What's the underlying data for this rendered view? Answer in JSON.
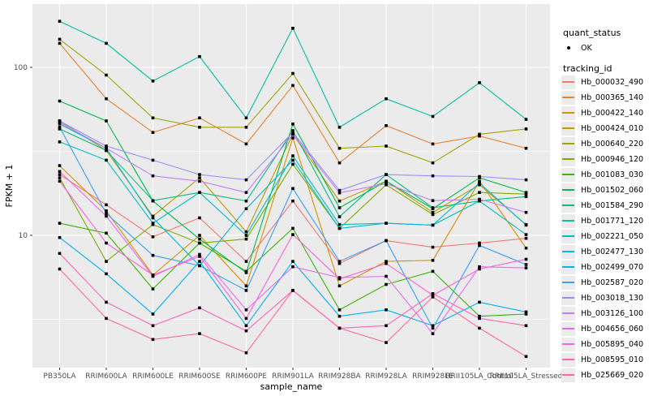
{
  "figure": {
    "background": "#ffffff",
    "panel_background": "#ebebeb",
    "gridline_color": "#ffffff",
    "marker_color": "#000000"
  },
  "legend": {
    "quant_status_title": "quant_status",
    "quant_status_items": [
      {
        "label": "OK",
        "marker": "black-point"
      }
    ],
    "tracking_id_title": "tracking_id"
  },
  "chart_data": {
    "type": "line",
    "title": "",
    "xlabel": "sample_name",
    "ylabel": "FPKM + 1",
    "y_scale": "log10",
    "ylim": [
      1.6,
      238
    ],
    "grid": true,
    "legend_position": "right",
    "marker": "small-black-square",
    "quant_status": "OK",
    "y_ticks": [
      {
        "label": "100",
        "value": 100
      },
      {
        "label": "10",
        "value": 10
      }
    ],
    "y_minor_gridlines": [
      3.1623,
      31.623
    ],
    "categories": [
      "PB350LA",
      "RRIM600LA",
      "RRIM600LE",
      "RRIM600SE",
      "RRIM600PE",
      "RRIM901LA",
      "RRIM928BA",
      "RRIM928LA",
      "RRIM928LE",
      "RRII105LA_Control",
      "RRII105LA_Stressed"
    ],
    "series": [
      {
        "name": "Hb_000032_490",
        "color": "#F8766D",
        "values": [
          23,
          15.2,
          9.8,
          12.7,
          7.0,
          16.0,
          6.8,
          9.3,
          8.5,
          9.0,
          9.6
        ]
      },
      {
        "name": "Hb_000365_140",
        "color": "#EA8331",
        "values": [
          139,
          65,
          41,
          50,
          35,
          78,
          27,
          45,
          35,
          39,
          33
        ]
      },
      {
        "name": "Hb_000422_140",
        "color": "#D89000",
        "values": [
          26,
          14,
          5.8,
          10,
          5.0,
          38,
          5.0,
          7.0,
          7.1,
          21,
          8.4
        ]
      },
      {
        "name": "Hb_000424_010",
        "color": "#C09B00",
        "values": [
          48,
          32,
          13,
          22,
          10.5,
          40,
          16,
          21,
          13.7,
          20,
          11.6
        ]
      },
      {
        "name": "Hb_000640_220",
        "color": "#A3A500",
        "values": [
          147,
          90,
          50,
          44,
          44,
          92,
          33,
          34,
          27,
          40,
          43
        ]
      },
      {
        "name": "Hb_000946_120",
        "color": "#7CAE00",
        "values": [
          22,
          7.0,
          11.6,
          9.0,
          9.5,
          26.5,
          11.0,
          20,
          13.3,
          18,
          17.6
        ]
      },
      {
        "name": "Hb_001083_030",
        "color": "#39B600",
        "values": [
          11.8,
          10.3,
          4.8,
          9.0,
          6.1,
          11.0,
          3.6,
          5.1,
          6.1,
          3.3,
          3.4
        ]
      },
      {
        "name": "Hb_001502_060",
        "color": "#00BB4E",
        "values": [
          63,
          48,
          16,
          9.5,
          6.0,
          46,
          14.6,
          21,
          14.4,
          22,
          18
        ]
      },
      {
        "name": "Hb_001584_290",
        "color": "#00BF7D",
        "values": [
          43,
          32,
          16.1,
          18,
          16,
          42,
          12.9,
          23,
          14.6,
          16,
          17
        ]
      },
      {
        "name": "Hb_001771_120",
        "color": "#00C1A3",
        "values": [
          188,
          139,
          83,
          116,
          50,
          171,
          44,
          65,
          51,
          81,
          49
        ]
      },
      {
        "name": "Hb_002221_050",
        "color": "#00BFC4",
        "values": [
          36,
          28,
          11.8,
          18,
          10,
          29.7,
          11.6,
          11.8,
          11.5,
          16,
          10.1
        ]
      },
      {
        "name": "Hb_002477_130",
        "color": "#00BAE0",
        "values": [
          46,
          33,
          12.7,
          6.6,
          14.4,
          28,
          11.0,
          11.8,
          11.5,
          20.5,
          11.5
        ]
      },
      {
        "name": "Hb_002499_070",
        "color": "#00B0F6",
        "values": [
          9.7,
          5.9,
          3.4,
          7.0,
          2.9,
          7.0,
          3.3,
          3.6,
          2.9,
          4.0,
          3.5
        ]
      },
      {
        "name": "Hb_002587_020",
        "color": "#35A2FF",
        "values": [
          44,
          13.5,
          7.6,
          6.6,
          4.7,
          19,
          7.0,
          9.3,
          2.8,
          8.7,
          6.7
        ]
      },
      {
        "name": "Hb_003018_130",
        "color": "#9590FF",
        "values": [
          48,
          34,
          28,
          23,
          21.4,
          41,
          18.5,
          23,
          22.6,
          22.4,
          21.4
        ]
      },
      {
        "name": "Hb_003126_100",
        "color": "#C77CFF",
        "values": [
          47,
          33,
          22.6,
          21,
          18,
          40,
          17.9,
          20.3,
          16.1,
          16.4,
          13.7
        ]
      },
      {
        "name": "Hb_004656_060",
        "color": "#E76BF3",
        "values": [
          24,
          13,
          5.7,
          7.7,
          3.6,
          6.5,
          5.6,
          5.7,
          2.6,
          6.5,
          6.4
        ]
      },
      {
        "name": "Hb_005895_040",
        "color": "#FA62DB",
        "values": [
          21,
          9.0,
          5.8,
          7.5,
          3.2,
          10.1,
          5.5,
          6.8,
          4.4,
          6.3,
          7.2
        ]
      },
      {
        "name": "Hb_008595_010",
        "color": "#FF62BC",
        "values": [
          7.8,
          4.0,
          2.9,
          3.7,
          2.7,
          4.7,
          2.8,
          2.9,
          4.5,
          3.2,
          2.9
        ]
      },
      {
        "name": "Hb_025669_020",
        "color": "#FF6A98",
        "values": [
          6.3,
          3.2,
          2.4,
          2.6,
          2.0,
          4.7,
          2.8,
          2.3,
          4.3,
          2.8,
          1.9
        ]
      }
    ]
  }
}
